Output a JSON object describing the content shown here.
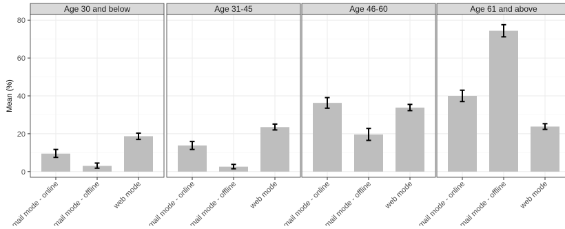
{
  "chart_data": {
    "type": "bar",
    "ylabel": "Mean (%)",
    "xlabel": "",
    "ylim": [
      -3,
      83
    ],
    "yticks": [
      0,
      20,
      40,
      60,
      80
    ],
    "grid": true,
    "categories": [
      "mail mode - online",
      "mail mode - offline",
      "web mode"
    ],
    "bar_color": "#bebebe",
    "errorbar_color": "#000000",
    "strip_color": "#d9d9d9",
    "panels": [
      {
        "title": "Age 30 and below",
        "values": [
          9.5,
          3.0,
          18.7
        ],
        "err_low": [
          7.5,
          1.8,
          17.0
        ],
        "err_high": [
          11.7,
          4.5,
          20.3
        ]
      },
      {
        "title": "Age 31-45",
        "values": [
          13.8,
          2.6,
          23.5
        ],
        "err_low": [
          11.7,
          1.5,
          22.0
        ],
        "err_high": [
          15.9,
          3.8,
          25.1
        ]
      },
      {
        "title": "Age 46-60",
        "values": [
          36.3,
          19.6,
          33.8
        ],
        "err_low": [
          33.5,
          16.5,
          32.2
        ],
        "err_high": [
          39.1,
          22.8,
          35.5
        ]
      },
      {
        "title": "Age 61 and above",
        "values": [
          40.0,
          74.4,
          23.8
        ],
        "err_low": [
          37.0,
          71.2,
          22.3
        ],
        "err_high": [
          43.0,
          77.6,
          25.3
        ]
      }
    ]
  }
}
